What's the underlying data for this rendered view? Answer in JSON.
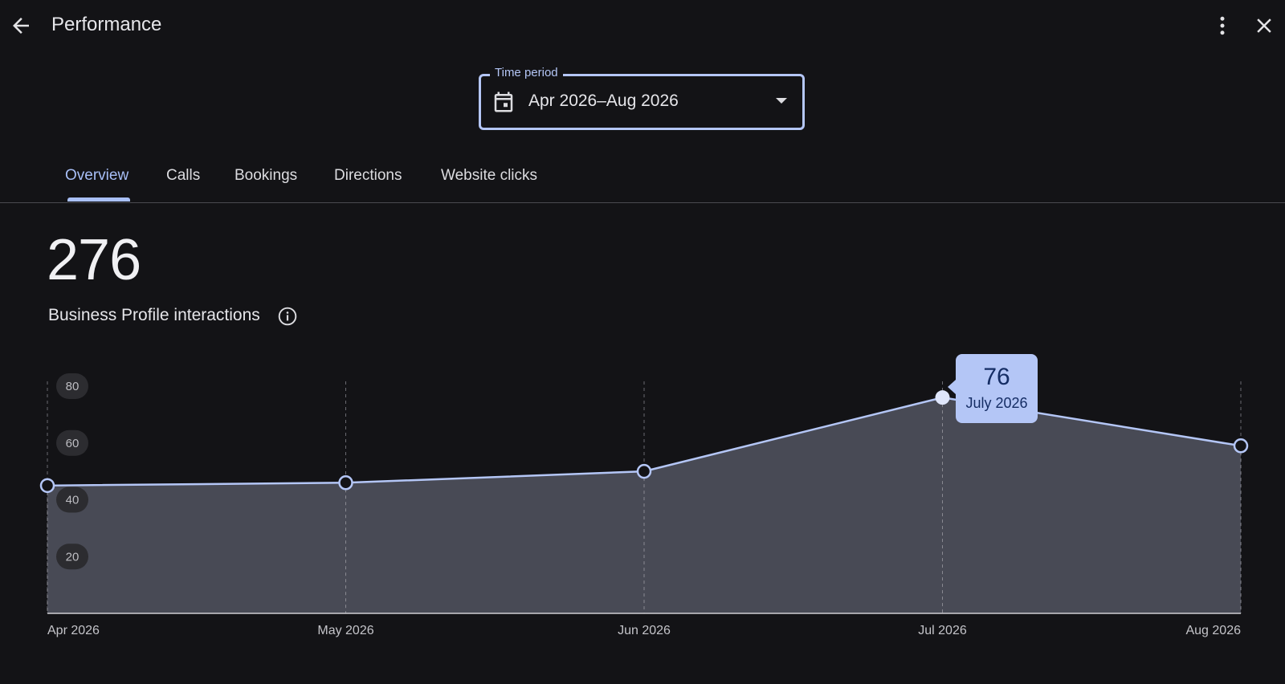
{
  "header": {
    "title": "Performance",
    "back_icon": "arrow-left-icon",
    "more_icon": "more-vert-icon",
    "close_icon": "close-icon"
  },
  "time_period": {
    "label": "Time period",
    "value": "Apr 2026–Aug 2026",
    "icon": "calendar-icon"
  },
  "tabs": [
    {
      "label": "Overview",
      "active": true
    },
    {
      "label": "Calls",
      "active": false
    },
    {
      "label": "Bookings",
      "active": false
    },
    {
      "label": "Directions",
      "active": false
    },
    {
      "label": "Website clicks",
      "active": false
    }
  ],
  "summary": {
    "total": "276",
    "label": "Business Profile interactions",
    "info_icon": "info-icon"
  },
  "colors": {
    "background": "#131316",
    "accent": "#b4c6f6",
    "area_fill": "#484a55"
  },
  "chart_data": {
    "type": "area",
    "categories": [
      "Apr 2026",
      "May 2026",
      "Jun 2026",
      "Jul 2026",
      "Aug 2026"
    ],
    "values": [
      45,
      46,
      50,
      76,
      59
    ],
    "yticks": [
      20,
      40,
      60,
      80
    ],
    "ylim": [
      0,
      80
    ],
    "grid": "vertical dashed",
    "tooltip": {
      "value": "76",
      "label": "July 2026"
    }
  }
}
